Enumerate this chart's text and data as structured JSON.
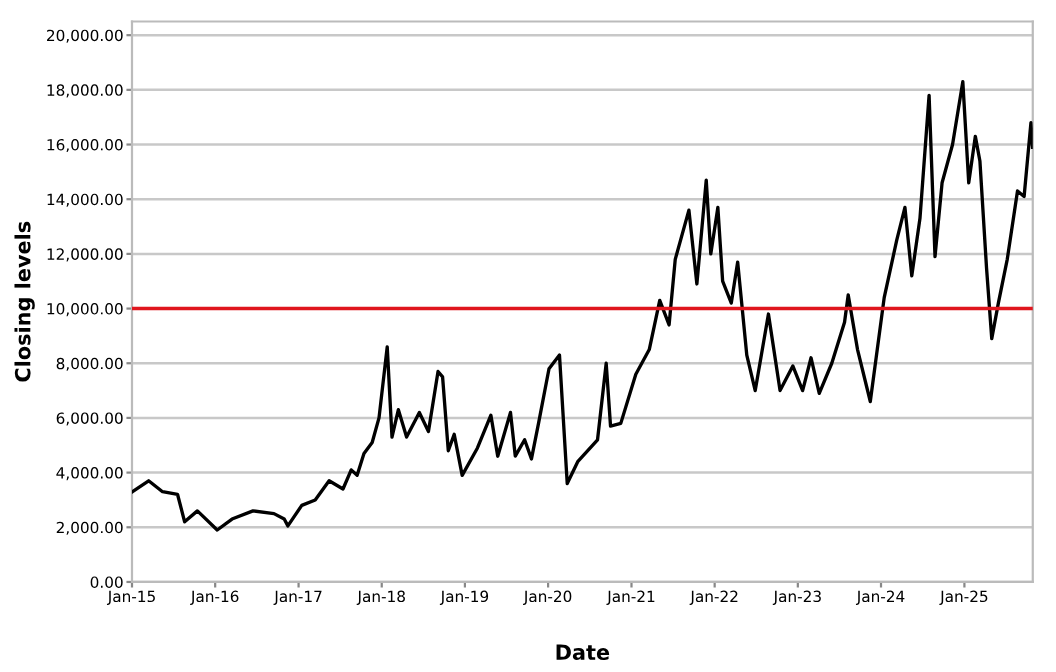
{
  "chart_data": {
    "type": "line",
    "xlabel": "Date",
    "ylabel": "Closing levels",
    "x": [
      "2015-01-02",
      "2015-03-15",
      "2015-05-15",
      "2015-07-20",
      "2015-08-20",
      "2015-10-15",
      "2016-01-10",
      "2016-03-15",
      "2016-06-15",
      "2016-09-15",
      "2016-10-30",
      "2016-11-15",
      "2017-01-15",
      "2017-03-15",
      "2017-05-15",
      "2017-07-15",
      "2017-08-20",
      "2017-09-15",
      "2017-10-15",
      "2017-11-20",
      "2017-12-20",
      "2018-01-25",
      "2018-02-15",
      "2018-03-15",
      "2018-04-20",
      "2018-06-15",
      "2018-07-25",
      "2018-09-05",
      "2018-09-25",
      "2018-10-20",
      "2018-11-15",
      "2018-12-20",
      "2019-02-25",
      "2019-04-25",
      "2019-05-25",
      "2019-07-20",
      "2019-08-10",
      "2019-09-20",
      "2019-10-20",
      "2019-11-20",
      "2020-01-05",
      "2020-02-20",
      "2020-03-25",
      "2020-05-10",
      "2020-08-05",
      "2020-09-12",
      "2020-10-01",
      "2020-11-15",
      "2021-01-20",
      "2021-03-20",
      "2021-05-05",
      "2021-06-15",
      "2021-07-12",
      "2021-09-10",
      "2021-10-15",
      "2021-11-25",
      "2021-12-15",
      "2022-01-15",
      "2022-02-05",
      "2022-03-15",
      "2022-04-12",
      "2022-05-22",
      "2022-06-28",
      "2022-08-25",
      "2022-10-15",
      "2022-12-10",
      "2023-01-22",
      "2023-02-28",
      "2023-04-05",
      "2023-05-30",
      "2023-07-25",
      "2023-08-10",
      "2023-09-20",
      "2023-11-15",
      "2024-01-15",
      "2024-03-10",
      "2024-04-15",
      "2024-05-15",
      "2024-06-20",
      "2024-07-30",
      "2024-08-25",
      "2024-09-25",
      "2024-11-10",
      "2024-12-25",
      "2025-01-20",
      "2025-02-18",
      "2025-03-10",
      "2025-04-08",
      "2025-05-01",
      "2025-05-30",
      "2025-07-08",
      "2025-08-22",
      "2025-09-20",
      "2025-10-20",
      "2025-10-27"
    ],
    "series": [
      {
        "color": "#000000",
        "values": [
          3300,
          3700,
          3300,
          3200,
          2200,
          2600,
          1900,
          2300,
          2600,
          2500,
          2300,
          2050,
          2800,
          3000,
          3700,
          3400,
          4100,
          3900,
          4700,
          5100,
          6000,
          8600,
          5300,
          6300,
          5300,
          6200,
          5500,
          7700,
          7500,
          4800,
          5400,
          3900,
          4900,
          6100,
          4600,
          6200,
          4600,
          5200,
          4500,
          5800,
          7800,
          8300,
          3600,
          4400,
          5200,
          8000,
          5700,
          5800,
          7600,
          8500,
          10300,
          9400,
          11800,
          13600,
          10900,
          14700,
          12000,
          13700,
          11000,
          10200,
          11700,
          8300,
          7000,
          9800,
          7000,
          7900,
          7000,
          8200,
          6900,
          8000,
          9500,
          10500,
          8500,
          6600,
          10400,
          12500,
          13700,
          11200,
          13300,
          17800,
          11900,
          14600,
          16000,
          18300,
          14600,
          16300,
          15400,
          11500,
          8900,
          10200,
          11800,
          14300,
          14100,
          16800,
          15900
        ]
      }
    ],
    "xlim": [
      "2015-01-01",
      "2025-10-28"
    ],
    "xticks": [
      {
        "value": "2015-01-01",
        "label": "Jan-15"
      },
      {
        "value": "2016-01-01",
        "label": "Jan-16"
      },
      {
        "value": "2017-01-01",
        "label": "Jan-17"
      },
      {
        "value": "2018-01-01",
        "label": "Jan-18"
      },
      {
        "value": "2019-01-01",
        "label": "Jan-19"
      },
      {
        "value": "2020-01-01",
        "label": "Jan-20"
      },
      {
        "value": "2021-01-01",
        "label": "Jan-21"
      },
      {
        "value": "2022-01-01",
        "label": "Jan-22"
      },
      {
        "value": "2023-01-01",
        "label": "Jan-23"
      },
      {
        "value": "2024-01-01",
        "label": "Jan-24"
      },
      {
        "value": "2025-01-01",
        "label": "Jan-25"
      }
    ],
    "ylim": [
      0,
      20500
    ],
    "yticks": [
      {
        "value": 0,
        "label": "0.00"
      },
      {
        "value": 2000,
        "label": "2,000.00"
      },
      {
        "value": 4000,
        "label": "4,000.00"
      },
      {
        "value": 6000,
        "label": "6,000.00"
      },
      {
        "value": 8000,
        "label": "8,000.00"
      },
      {
        "value": 10000,
        "label": "10,000.00"
      },
      {
        "value": 12000,
        "label": "12,000.00"
      },
      {
        "value": 14000,
        "label": "14,000.00"
      },
      {
        "value": 16000,
        "label": "16,000.00"
      },
      {
        "value": 18000,
        "label": "18,000.00"
      },
      {
        "value": 20000,
        "label": "20,000.00"
      }
    ],
    "ref_lines": [
      {
        "axis": "y",
        "value": 10000,
        "color": "#e0161e"
      }
    ],
    "grid": "y",
    "marker": "none",
    "line_style": "solid"
  }
}
